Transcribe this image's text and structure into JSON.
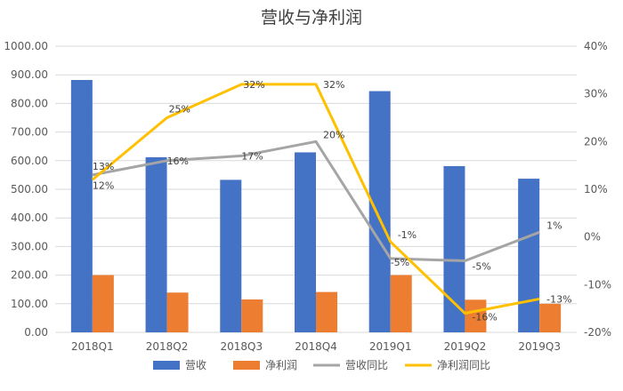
{
  "chart_data": {
    "type": "bar+line",
    "title": "营收与净利润",
    "categories": [
      "2018Q1",
      "2018Q2",
      "2018Q3",
      "2018Q4",
      "2019Q1",
      "2019Q2",
      "2019Q3"
    ],
    "left_axis": {
      "ylim": [
        0,
        1000
      ],
      "ticks": [
        "0.00",
        "100.00",
        "200.00",
        "300.00",
        "400.00",
        "500.00",
        "600.00",
        "700.00",
        "800.00",
        "900.00",
        "1000.00"
      ]
    },
    "right_axis": {
      "ylim": [
        -20,
        40
      ],
      "ticks": [
        "-20%",
        "-10%",
        "0%",
        "10%",
        "20%",
        "30%",
        "40%"
      ]
    },
    "series": [
      {
        "name": "营收",
        "kind": "bar",
        "axis": "left",
        "color": "#4472C4",
        "values": [
          882,
          612,
          533,
          629,
          843,
          581,
          537
        ]
      },
      {
        "name": "净利润",
        "kind": "bar",
        "axis": "left",
        "color": "#ED7D31",
        "values": [
          200,
          139,
          115,
          141,
          200,
          114,
          100
        ]
      },
      {
        "name": "营收同比",
        "kind": "line",
        "axis": "right",
        "color": "#A5A5A5",
        "values": [
          13,
          16,
          17,
          20,
          -4.5,
          -5,
          1
        ],
        "labels": [
          "13%",
          "16%",
          "17%",
          "20%",
          "-5%",
          "-5%",
          "1%"
        ]
      },
      {
        "name": "净利润同比",
        "kind": "line",
        "axis": "right",
        "color": "#FFC000",
        "values": [
          12,
          25,
          32,
          32,
          -1,
          -16,
          -13
        ],
        "labels": [
          "12%",
          "25%",
          "32%",
          "32%",
          "-1%",
          "-16%",
          "-13%"
        ]
      }
    ],
    "grid": true,
    "legend_position": "bottom"
  }
}
